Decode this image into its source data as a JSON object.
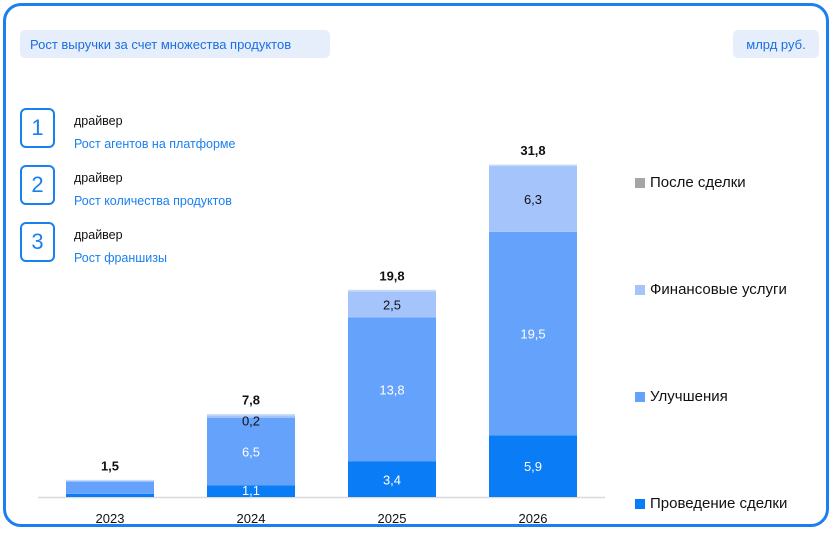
{
  "header": {
    "title": "Рост выручки за счет множества продуктов",
    "unit": "млрд руб."
  },
  "drivers": [
    {
      "number": "1",
      "label": "драйвер",
      "text": "Рост агентов на платформе"
    },
    {
      "number": "2",
      "label": "драйвер",
      "text": "Рост количества продуктов"
    },
    {
      "number": "3",
      "label": "драйвер",
      "text": "Рост франшизы"
    }
  ],
  "colors": {
    "accent": "#1a7ff0",
    "provedenie": "#0a7cf6",
    "uluchsheniya": "#64a2fb",
    "finansovye": "#a6c4fc",
    "posle": "#a6a6a6"
  },
  "chart_data": {
    "type": "bar",
    "stacked": true,
    "title": "Рост выручки за счет множества продуктов",
    "unit": "млрд руб.",
    "categories": [
      "2023",
      "2024",
      "2025",
      "2026"
    ],
    "series": [
      {
        "name": "Проведение сделки",
        "color": "#0a7cf6",
        "values": [
          0.3,
          1.1,
          3.4,
          5.9
        ],
        "labels": [
          "",
          "1,1",
          "3,4",
          "5,9"
        ]
      },
      {
        "name": "Улучшения",
        "color": "#64a2fb",
        "values": [
          1.2,
          6.5,
          13.8,
          19.5
        ],
        "labels": [
          "",
          "6,5",
          "13,8",
          "19,5"
        ]
      },
      {
        "name": "Финансовые услуги",
        "color": "#a6c4fc",
        "values": [
          0.0,
          0.2,
          2.5,
          6.3
        ],
        "labels": [
          "",
          "0,2",
          "2,5",
          "6,3"
        ]
      },
      {
        "name": "После сделки",
        "color": "#a6a6a6",
        "values": [
          0,
          0,
          0,
          0
        ],
        "labels": [
          "",
          "",
          "",
          ""
        ]
      }
    ],
    "totals": [
      "1,5",
      "7,8",
      "19,8",
      "31,8"
    ],
    "total_values": [
      1.5,
      7.8,
      19.8,
      31.8
    ],
    "ylim": [
      0,
      31.8
    ],
    "grid": false,
    "legend_position": "right"
  }
}
